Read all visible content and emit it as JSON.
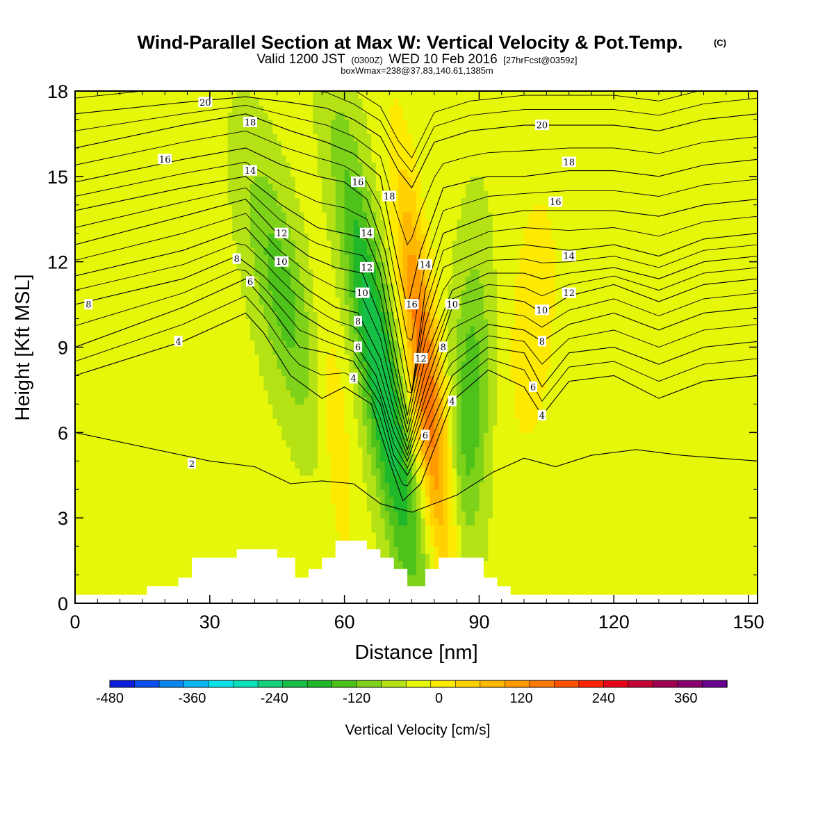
{
  "title": {
    "main": "Wind-Parallel Section at Max W: Vertical Velocity & Pot.Temp.",
    "copyright": "(C)",
    "valid_prefix": "Valid 1200 JST",
    "valid_zulu": "(0300Z)",
    "valid_date": "WED 10 Feb 2016",
    "forecast": "[27hrFcst@0359z]",
    "box": "boxWmax=238@37.83,140.61,1385m"
  },
  "chart_data": {
    "type": "heatmap",
    "title": "Wind-Parallel Section at Max W: Vertical Velocity & Pot.Temp.",
    "xlabel": "Distance [nm]",
    "ylabel": "Height [Kft MSL]",
    "xlim": [
      0,
      152
    ],
    "ylim": [
      0,
      18
    ],
    "x_ticks": [
      0,
      30,
      60,
      90,
      120,
      150
    ],
    "y_ticks": [
      0,
      3,
      6,
      9,
      12,
      15,
      18
    ],
    "x_tick_labels": [
      "0",
      "30",
      "60",
      "90",
      "120",
      "150"
    ],
    "y_tick_labels": [
      "0",
      "3",
      "6",
      "9",
      "12",
      "15",
      "18"
    ],
    "colorbar": {
      "label": "Vertical Velocity [cm/s]",
      "min": -480,
      "max": 420,
      "step": 40,
      "tick_values": [
        -480,
        -360,
        -240,
        -120,
        0,
        120,
        240,
        360
      ],
      "tick_labels": [
        "-480",
        "-360",
        "-240",
        "-120",
        "0",
        "120",
        "240",
        "360"
      ],
      "colors": [
        "#0b1ee0",
        "#0a4ff0",
        "#0a86f0",
        "#0ab6f5",
        "#08e2e8",
        "#08e0b8",
        "#12d07c",
        "#16c046",
        "#1eb82a",
        "#4ec21a",
        "#7ed21a",
        "#b4e214",
        "#e6f70a",
        "#fdea00",
        "#ffd200",
        "#ffb800",
        "#ff9a00",
        "#ff7800",
        "#ff5000",
        "#ff2200",
        "#e60018",
        "#c40034",
        "#a00050",
        "#88006a",
        "#6a0090"
      ]
    },
    "velocity_field": {
      "background_cm_s": 10,
      "features": [
        {
          "name": "downdraft-upper-west",
          "x": 46,
          "height": 11,
          "w_cm_s": -110
        },
        {
          "name": "downdraft-main",
          "x": 68,
          "height": 8,
          "w_cm_s": -210
        },
        {
          "name": "updraft-main",
          "x": 78,
          "height": 8,
          "w_cm_s": 230
        },
        {
          "name": "downdraft-east",
          "x": 88,
          "height": 7,
          "w_cm_s": -120
        },
        {
          "name": "updraft-east-weak",
          "x": 102,
          "height": 10,
          "w_cm_s": 50
        },
        {
          "name": "weak-updraft-west",
          "x": 58,
          "height": 6,
          "w_cm_s": 60
        }
      ],
      "max_w_cm_s": 238
    },
    "series": [
      {
        "name": "2",
        "values": [
          [
            0,
            6.0
          ],
          [
            30,
            5.0
          ],
          [
            40,
            4.8
          ],
          [
            48,
            4.2
          ],
          [
            55,
            4.3
          ],
          [
            62,
            4.2
          ],
          [
            68,
            3.5
          ],
          [
            75,
            3.2
          ],
          [
            85,
            3.8
          ],
          [
            93,
            4.6
          ],
          [
            100,
            5.1
          ],
          [
            107,
            4.8
          ],
          [
            115,
            5.2
          ],
          [
            125,
            5.4
          ],
          [
            135,
            5.2
          ],
          [
            152,
            5.0
          ]
        ]
      },
      {
        "name": "4",
        "values": [
          [
            0,
            8.0
          ],
          [
            24,
            9.2
          ],
          [
            38,
            10.2
          ],
          [
            42,
            9.5
          ],
          [
            48,
            8.0
          ],
          [
            55,
            7.2
          ],
          [
            60,
            7.6
          ],
          [
            66,
            7.0
          ],
          [
            70,
            5.0
          ],
          [
            73,
            3.6
          ],
          [
            77,
            4.2
          ],
          [
            84,
            7.1
          ],
          [
            92,
            8.2
          ],
          [
            100,
            7.6
          ],
          [
            104,
            6.6
          ],
          [
            110,
            7.8
          ],
          [
            120,
            8.0
          ],
          [
            130,
            7.2
          ],
          [
            140,
            7.8
          ],
          [
            152,
            8.0
          ]
        ]
      },
      {
        "name": "6",
        "values": [
          [
            0,
            9.0
          ],
          [
            24,
            10.4
          ],
          [
            38,
            11.4
          ],
          [
            43,
            10.5
          ],
          [
            50,
            9.0
          ],
          [
            56,
            8.8
          ],
          [
            62,
            8.5
          ],
          [
            68,
            7.0
          ],
          [
            71,
            5.2
          ],
          [
            74,
            4.5
          ],
          [
            78,
            5.8
          ],
          [
            84,
            8.0
          ],
          [
            92,
            9.0
          ],
          [
            100,
            8.8
          ],
          [
            104,
            7.6
          ],
          [
            110,
            8.8
          ],
          [
            120,
            9.0
          ],
          [
            130,
            8.4
          ],
          [
            140,
            9.0
          ],
          [
            152,
            9.2
          ]
        ]
      },
      {
        "name": "8",
        "values": [
          [
            0,
            10.5
          ],
          [
            24,
            11.4
          ],
          [
            36,
            12.2
          ],
          [
            42,
            11.5
          ],
          [
            50,
            10.2
          ],
          [
            56,
            9.6
          ],
          [
            62,
            9.2
          ],
          [
            67,
            8.0
          ],
          [
            71,
            6.0
          ],
          [
            74,
            5.0
          ],
          [
            78,
            6.8
          ],
          [
            83,
            8.8
          ],
          [
            92,
            9.8
          ],
          [
            100,
            9.6
          ],
          [
            104,
            9.2
          ],
          [
            110,
            9.8
          ],
          [
            120,
            10.2
          ],
          [
            130,
            9.6
          ],
          [
            140,
            10.2
          ],
          [
            152,
            10.4
          ]
        ]
      },
      {
        "name": "10",
        "values": [
          [
            0,
            11.5
          ],
          [
            24,
            12.4
          ],
          [
            38,
            13.2
          ],
          [
            46,
            11.8
          ],
          [
            52,
            11.0
          ],
          [
            58,
            10.4
          ],
          [
            63,
            10.2
          ],
          [
            68,
            8.6
          ],
          [
            71,
            6.8
          ],
          [
            74,
            5.4
          ],
          [
            78,
            7.6
          ],
          [
            84,
            10.4
          ],
          [
            92,
            10.8
          ],
          [
            100,
            10.6
          ],
          [
            104,
            10.2
          ],
          [
            110,
            10.8
          ],
          [
            120,
            11.2
          ],
          [
            130,
            10.6
          ],
          [
            140,
            11.2
          ],
          [
            152,
            11.4
          ]
        ]
      },
      {
        "name": "12",
        "values": [
          [
            0,
            12.6
          ],
          [
            24,
            13.6
          ],
          [
            38,
            14.2
          ],
          [
            45,
            13.0
          ],
          [
            52,
            12.2
          ],
          [
            58,
            11.8
          ],
          [
            64,
            11.6
          ],
          [
            68,
            10.0
          ],
          [
            71,
            7.8
          ],
          [
            74,
            6.0
          ],
          [
            78,
            8.6
          ],
          [
            84,
            11.0
          ],
          [
            92,
            11.6
          ],
          [
            100,
            11.6
          ],
          [
            104,
            11.4
          ],
          [
            110,
            11.6
          ],
          [
            120,
            11.8
          ],
          [
            130,
            11.4
          ],
          [
            140,
            12.0
          ],
          [
            152,
            12.2
          ]
        ]
      },
      {
        "name": "14",
        "values": [
          [
            0,
            13.8
          ],
          [
            24,
            14.6
          ],
          [
            38,
            15.0
          ],
          [
            46,
            14.0
          ],
          [
            54,
            13.2
          ],
          [
            60,
            13.0
          ],
          [
            65,
            12.8
          ],
          [
            68,
            11.6
          ],
          [
            71,
            9.0
          ],
          [
            74,
            6.6
          ],
          [
            78,
            9.8
          ],
          [
            82,
            11.8
          ],
          [
            92,
            12.5
          ],
          [
            100,
            12.6
          ],
          [
            110,
            12.4
          ],
          [
            120,
            12.6
          ],
          [
            130,
            12.2
          ],
          [
            140,
            12.8
          ],
          [
            152,
            13.0
          ]
        ]
      },
      {
        "name": "16",
        "values": [
          [
            0,
            14.8
          ],
          [
            24,
            15.6
          ],
          [
            38,
            16.0
          ],
          [
            46,
            15.4
          ],
          [
            54,
            15.0
          ],
          [
            60,
            14.8
          ],
          [
            65,
            14.2
          ],
          [
            69,
            12.4
          ],
          [
            72,
            10.0
          ],
          [
            75,
            7.4
          ],
          [
            78,
            11.0
          ],
          [
            82,
            13.0
          ],
          [
            92,
            13.6
          ],
          [
            100,
            13.8
          ],
          [
            110,
            13.8
          ],
          [
            120,
            13.8
          ],
          [
            130,
            13.6
          ],
          [
            140,
            14.0
          ],
          [
            152,
            14.2
          ]
        ]
      },
      {
        "name": "18",
        "values": [
          [
            0,
            16.0
          ],
          [
            24,
            16.8
          ],
          [
            38,
            17.2
          ],
          [
            48,
            16.6
          ],
          [
            56,
            16.2
          ],
          [
            62,
            15.8
          ],
          [
            68,
            15.0
          ],
          [
            71,
            12.6
          ],
          [
            74,
            10.4
          ],
          [
            77,
            12.4
          ],
          [
            82,
            14.6
          ],
          [
            92,
            15.0
          ],
          [
            100,
            15.0
          ],
          [
            110,
            15.2
          ],
          [
            120,
            15.2
          ],
          [
            130,
            15.0
          ],
          [
            140,
            15.4
          ],
          [
            152,
            15.6
          ]
        ]
      },
      {
        "name": "20",
        "values": [
          [
            0,
            17.2
          ],
          [
            24,
            17.6
          ],
          [
            38,
            17.8
          ],
          [
            48,
            17.6
          ],
          [
            56,
            17.4
          ],
          [
            62,
            17.0
          ],
          [
            68,
            16.4
          ],
          [
            72,
            15.2
          ],
          [
            75,
            14.6
          ],
          [
            80,
            16.2
          ],
          [
            88,
            16.6
          ],
          [
            100,
            16.8
          ],
          [
            110,
            16.8
          ],
          [
            120,
            16.8
          ],
          [
            130,
            16.6
          ],
          [
            140,
            17.0
          ],
          [
            152,
            17.2
          ]
        ]
      }
    ],
    "extra_contour_lines_count": 6,
    "contour_labels": [
      {
        "text": "20",
        "x": 29,
        "y": 17.6
      },
      {
        "text": "18",
        "x": 39,
        "y": 16.9
      },
      {
        "text": "16",
        "x": 20,
        "y": 15.6
      },
      {
        "text": "14",
        "x": 39,
        "y": 15.2
      },
      {
        "text": "12",
        "x": 46,
        "y": 13.0
      },
      {
        "text": "10",
        "x": 46,
        "y": 12.0
      },
      {
        "text": "8",
        "x": 36,
        "y": 12.1
      },
      {
        "text": "6",
        "x": 39,
        "y": 11.3
      },
      {
        "text": "8",
        "x": 3,
        "y": 10.5
      },
      {
        "text": "4",
        "x": 23,
        "y": 9.2
      },
      {
        "text": "2",
        "x": 26,
        "y": 4.9
      },
      {
        "text": "16",
        "x": 63,
        "y": 14.8
      },
      {
        "text": "18",
        "x": 70,
        "y": 14.3
      },
      {
        "text": "14",
        "x": 65,
        "y": 13.0
      },
      {
        "text": "12",
        "x": 65,
        "y": 11.8
      },
      {
        "text": "10",
        "x": 64,
        "y": 10.9
      },
      {
        "text": "8",
        "x": 63,
        "y": 9.9
      },
      {
        "text": "6",
        "x": 63,
        "y": 9.0
      },
      {
        "text": "4",
        "x": 62,
        "y": 7.9
      },
      {
        "text": "14",
        "x": 78,
        "y": 11.9
      },
      {
        "text": "16",
        "x": 75,
        "y": 10.5
      },
      {
        "text": "12",
        "x": 77,
        "y": 8.6
      },
      {
        "text": "8",
        "x": 82,
        "y": 9.0
      },
      {
        "text": "10",
        "x": 84,
        "y": 10.5
      },
      {
        "text": "4",
        "x": 84,
        "y": 7.1
      },
      {
        "text": "6",
        "x": 78,
        "y": 5.9
      },
      {
        "text": "20",
        "x": 104,
        "y": 16.8
      },
      {
        "text": "18",
        "x": 110,
        "y": 15.5
      },
      {
        "text": "16",
        "x": 107,
        "y": 14.1
      },
      {
        "text": "14",
        "x": 110,
        "y": 12.2
      },
      {
        "text": "12",
        "x": 110,
        "y": 10.9
      },
      {
        "text": "10",
        "x": 104,
        "y": 10.3
      },
      {
        "text": "8",
        "x": 104,
        "y": 9.2
      },
      {
        "text": "6",
        "x": 102,
        "y": 7.6
      },
      {
        "text": "4",
        "x": 104,
        "y": 6.6
      }
    ],
    "terrain": [
      [
        0,
        0.3
      ],
      [
        16,
        0.3
      ],
      [
        16,
        0.6
      ],
      [
        23,
        0.6
      ],
      [
        23,
        0.9
      ],
      [
        26,
        0.9
      ],
      [
        26,
        1.6
      ],
      [
        36,
        1.6
      ],
      [
        36,
        1.9
      ],
      [
        45,
        1.9
      ],
      [
        45,
        1.6
      ],
      [
        49,
        1.6
      ],
      [
        49,
        0.9
      ],
      [
        52,
        0.9
      ],
      [
        52,
        1.2
      ],
      [
        55,
        1.2
      ],
      [
        55,
        1.6
      ],
      [
        58,
        1.6
      ],
      [
        58,
        2.2
      ],
      [
        65,
        2.2
      ],
      [
        65,
        1.9
      ],
      [
        68,
        1.9
      ],
      [
        68,
        1.6
      ],
      [
        71,
        1.6
      ],
      [
        71,
        1.2
      ],
      [
        74,
        1.2
      ],
      [
        74,
        0.6
      ],
      [
        78,
        0.6
      ],
      [
        78,
        1.2
      ],
      [
        81,
        1.2
      ],
      [
        81,
        1.6
      ],
      [
        91,
        1.6
      ],
      [
        91,
        0.9
      ],
      [
        94,
        0.9
      ],
      [
        94,
        0.6
      ],
      [
        97,
        0.6
      ],
      [
        97,
        0.3
      ],
      [
        152,
        0.3
      ]
    ],
    "grid": false,
    "legend": "bottom"
  }
}
